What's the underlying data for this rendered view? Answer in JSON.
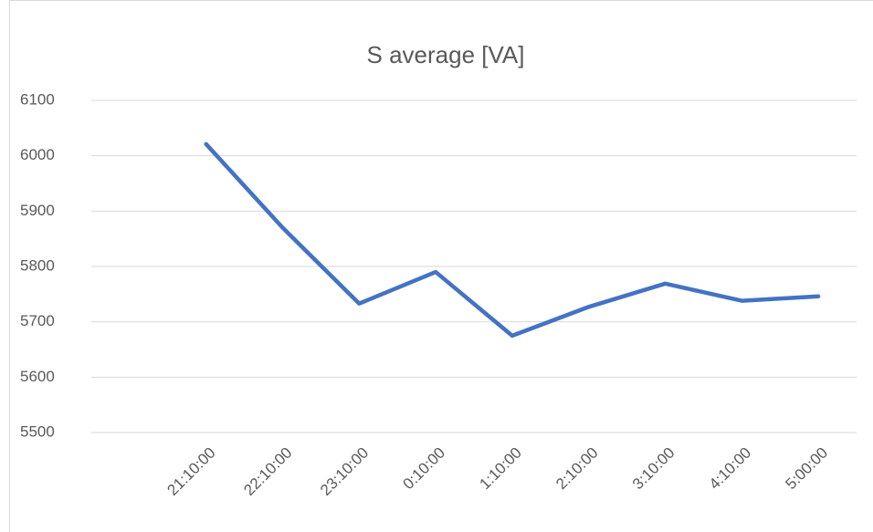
{
  "chart_data": {
    "type": "line",
    "title": "S average [VA]",
    "categories": [
      null,
      "21:10:00",
      "22:10:00",
      "23:10:00",
      "0:10:00",
      "1:10:00",
      "2:10:00",
      "3:10:00",
      "4:10:00",
      "5:00:00"
    ],
    "values": [
      null,
      6021,
      5870,
      5733,
      5790,
      5675,
      5727,
      5769,
      5738,
      5746
    ],
    "color": "#4472c4",
    "ylim": [
      5500,
      6100
    ],
    "yticks": [
      5500,
      5600,
      5700,
      5800,
      5900,
      6000,
      6100
    ],
    "grid": true
  }
}
